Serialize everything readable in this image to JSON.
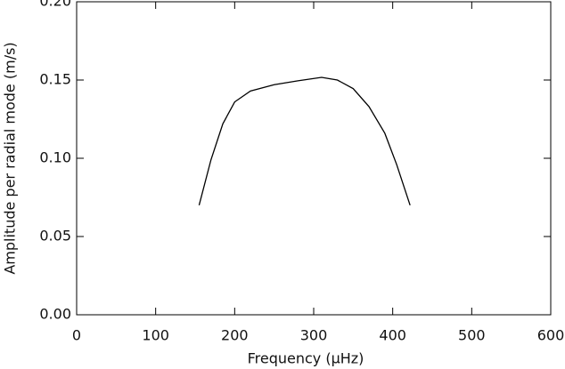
{
  "chart_data": {
    "type": "line",
    "xlabel": "Frequency (μHz)",
    "ylabel": "Amplitude per radial mode (m/s)",
    "x": [
      155,
      170,
      185,
      200,
      220,
      250,
      280,
      310,
      330,
      350,
      370,
      390,
      405,
      422
    ],
    "values": [
      0.07,
      0.099,
      0.122,
      0.136,
      0.143,
      0.147,
      0.1495,
      0.1517,
      0.15,
      0.1445,
      0.133,
      0.116,
      0.096,
      0.07
    ],
    "color": "#000000",
    "xlim": [
      0,
      600
    ],
    "xticks": [
      0,
      100,
      200,
      300,
      400,
      500,
      600
    ],
    "ylim": [
      0,
      0.2
    ],
    "yticks": [
      {
        "value": 0,
        "label": "0.00"
      },
      {
        "value": 0.05,
        "label": "0.05"
      },
      {
        "value": 0.1,
        "label": "0.10"
      },
      {
        "value": 0.15,
        "label": "0.15"
      },
      {
        "value": 0.2,
        "label": "0.20"
      }
    ]
  }
}
